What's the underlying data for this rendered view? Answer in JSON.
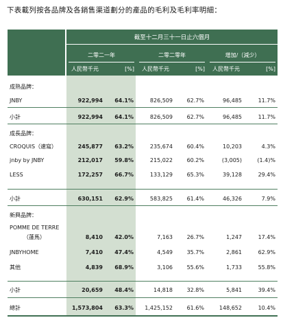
{
  "intro": "下表載列按各品牌及各銷售渠道劃分的產品的毛利及毛利率明細：",
  "header": {
    "period": "截至十二月三十一日止六個月",
    "col_2021": "二零二一年",
    "col_2020": "二零二零年",
    "col_change": "增加/（減少）",
    "unit_rmb": "人民幣千元",
    "unit_pct": "[%]"
  },
  "groups": {
    "mature": {
      "title": "成熟品牌：",
      "rows": [
        {
          "name": "JNBY",
          "v21": "922,994",
          "p21": "64.1%",
          "v20": "826,509",
          "p20": "62.7%",
          "vc": "96,485",
          "pc": "11.7%"
        }
      ],
      "subtotal": {
        "name": "小計",
        "v21": "922,994",
        "p21": "64.1%",
        "v20": "826,509",
        "p20": "62.7%",
        "vc": "96,485",
        "pc": "11.7%"
      }
    },
    "growth": {
      "title": "成長品牌：",
      "rows": [
        {
          "name": "CROQUIS（速寫）",
          "v21": "245,877",
          "p21": "63.2%",
          "v20": "235,674",
          "p20": "60.4%",
          "vc": "10,203",
          "pc": "4.3%"
        },
        {
          "name": "jnby by JNBY",
          "v21": "212,017",
          "p21": "59.8%",
          "v20": "215,022",
          "p20": "60.2%",
          "vc": "(3,005)",
          "pc": "(1.4)%"
        },
        {
          "name": "LESS",
          "v21": "172,257",
          "p21": "66.7%",
          "v20": "133,129",
          "p20": "65.3%",
          "vc": "39,128",
          "pc": "29.4%"
        }
      ],
      "subtotal": {
        "name": "小計",
        "v21": "630,151",
        "p21": "62.9%",
        "v20": "583,825",
        "p20": "61.4%",
        "vc": "46,326",
        "pc": "7.9%"
      }
    },
    "emerging": {
      "title": "新興品牌：",
      "rows": [
        {
          "name": "POMME DE TERRE",
          "name2": "（蓬馬）",
          "v21": "8,410",
          "p21": "42.0%",
          "v20": "7,163",
          "p20": "26.7%",
          "vc": "1,247",
          "pc": "17.4%"
        },
        {
          "name": "JNBYHOME",
          "v21": "7,410",
          "p21": "47.4%",
          "v20": "4,549",
          "p20": "35.7%",
          "vc": "2,861",
          "pc": "62.9%"
        },
        {
          "name": "其他",
          "v21": "4,839",
          "p21": "68.9%",
          "v20": "3,106",
          "p20": "55.6%",
          "vc": "1,733",
          "pc": "55.8%"
        }
      ],
      "subtotal": {
        "name": "小計",
        "v21": "20,659",
        "p21": "48.4%",
        "v20": "14,818",
        "p20": "32.8%",
        "vc": "5,841",
        "pc": "39.4%"
      }
    }
  },
  "total": {
    "name": "總計",
    "v21": "1,573,804",
    "p21": "63.3%",
    "v20": "1,425,152",
    "p20": "61.6%",
    "vc": "148,652",
    "pc": "10.4%"
  }
}
